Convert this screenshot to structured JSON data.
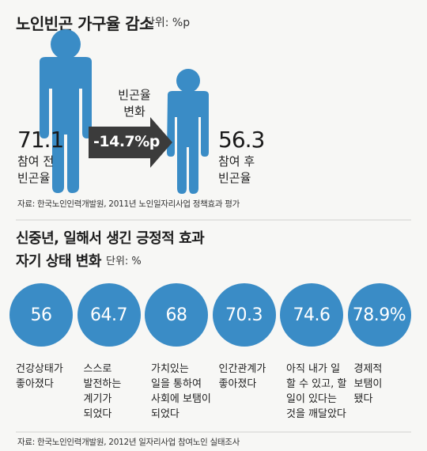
{
  "section1": {
    "title": "노인빈곤 가구율 감소",
    "unit": "단위: %p",
    "before": {
      "value": "71.1",
      "label_lines": [
        "참여 전",
        "빈곤율"
      ]
    },
    "after": {
      "value": "56.3",
      "label_lines": [
        "참여 후",
        "빈곤율"
      ]
    },
    "arrow": {
      "caption_lines": [
        "빈곤율",
        "변화"
      ],
      "value": "-14.7%p"
    },
    "source": "자료: 한국노인인력개발원, 2011년 노인일자리사업 정책효과 평가"
  },
  "section2": {
    "title_line1": "신중년, 일해서 생긴 긍정적 효과",
    "title_line2": "자기 상태 변화",
    "unit": "단위: %",
    "source": "자료: 한국노인인력개발원, 2012년 일자리사업 참여노인 실태조사"
  },
  "chart_data": [
    {
      "type": "bar",
      "title": "노인빈곤 가구율 감소",
      "unit": "%p",
      "categories": [
        "참여 전 빈곤율",
        "참여 후 빈곤율"
      ],
      "values": [
        71.1,
        56.3
      ],
      "change": -14.7
    },
    {
      "type": "bar",
      "title": "자기 상태 변화",
      "unit": "%",
      "categories": [
        "건강상태가 좋아졌다",
        "스스로 발전하는 계기가 되었다",
        "가치있는 일을 통하여 사회에 보탬이 되었다",
        "인간관계가 좋아졌다",
        "아직 내가 일 할 수 있고, 할 일이 있다는 것을 깨달았다",
        "경제적 보탬이 됐다"
      ],
      "values": [
        56,
        64.7,
        68,
        70.3,
        74.6,
        78.9
      ],
      "value_labels": [
        "56",
        "64.7",
        "68",
        "70.3",
        "74.6",
        "78.9%"
      ],
      "label_lines": [
        [
          "건강상태가",
          "좋아졌다"
        ],
        [
          "스스로",
          "발전하는",
          "계기가",
          "되었다"
        ],
        [
          "가치있는",
          "일을 통하여",
          "사회에 보탬이",
          "되었다"
        ],
        [
          "인간관계가",
          "좋아졌다"
        ],
        [
          "아직 내가 일",
          "할 수 있고, 할",
          "일이 있다는",
          "것을 깨달았다"
        ],
        [
          "경제적",
          "보탬이",
          "됐다"
        ]
      ]
    }
  ],
  "colors": {
    "accent": "#3a8cc6",
    "arrow": "#3b3b3b",
    "divider": "#d0d0d0"
  }
}
